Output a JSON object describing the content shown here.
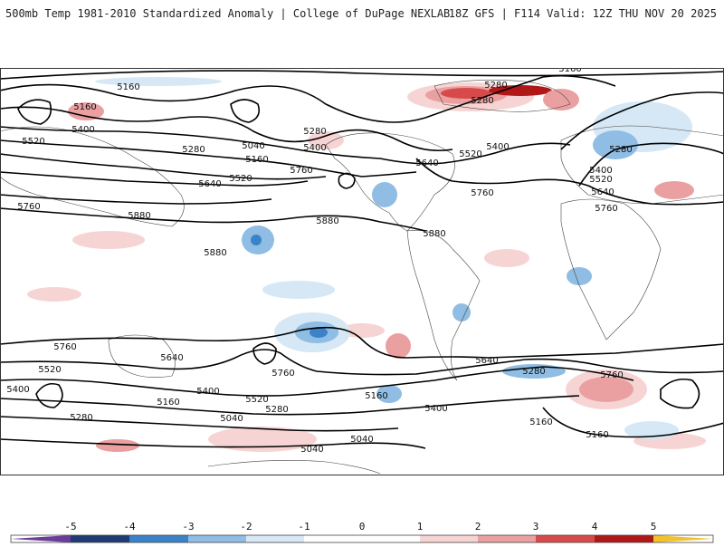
{
  "header": {
    "title": "500mb Temp 1981-2010 Standardized Anomaly | College of DuPage NEXLAB",
    "run_info": "18Z GFS | F114 Valid: 12Z THU NOV 20 2025"
  },
  "contours": {
    "height_labels": [
      "5160",
      "5160",
      "5160",
      "5160",
      "5160",
      "5160",
      "5160",
      "5160",
      "5040",
      "5040",
      "5040",
      "5040",
      "5280",
      "5280",
      "5280",
      "5280",
      "5280",
      "5280",
      "5280",
      "5280",
      "5400",
      "5400",
      "5400",
      "5400",
      "5400",
      "5400",
      "5400",
      "5520",
      "5520",
      "5520",
      "5520",
      "5520",
      "5520",
      "5640",
      "5640",
      "5640",
      "5640",
      "5640",
      "5760",
      "5760",
      "5760",
      "5760",
      "5760",
      "5760",
      "5760",
      "5880",
      "5880",
      "5880",
      "5880"
    ]
  },
  "colorbar": {
    "ticks": [
      "-5",
      "-4",
      "-3",
      "-2",
      "-1",
      "0",
      "1",
      "2",
      "3",
      "4",
      "5"
    ],
    "colors": {
      "neg5": "#6a3d9a",
      "neg4": "#1f3b73",
      "neg3": "#3b82c8",
      "neg2": "#8fbde3",
      "neg1": "#d6e8f5",
      "zero": "#ffffff",
      "pos1": "#f7d4d4",
      "pos2": "#eaa0a0",
      "pos3": "#d84a4a",
      "pos4": "#b01818",
      "pos5": "#f2c12e"
    }
  }
}
